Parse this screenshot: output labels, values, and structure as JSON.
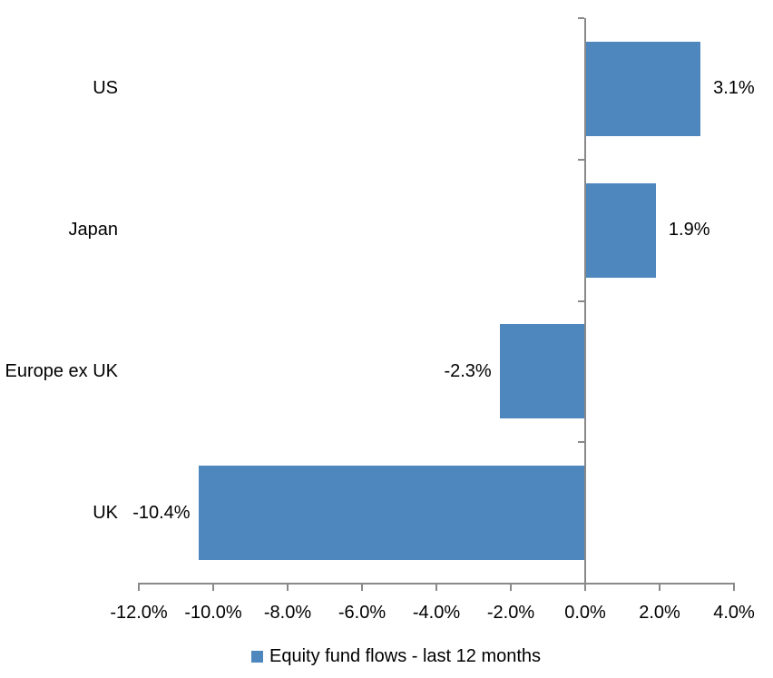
{
  "chart_data": {
    "type": "bar",
    "orientation": "horizontal",
    "title": "",
    "categories": [
      "US",
      "Japan",
      "Europe ex UK",
      "UK"
    ],
    "series": [
      {
        "name": "Equity fund flows - last 12 months",
        "values": [
          3.1,
          1.9,
          -2.3,
          -10.4
        ],
        "data_labels": [
          "3.1%",
          "1.9%",
          "-2.3%",
          "-10.4%"
        ]
      }
    ],
    "xlabel": "",
    "ylabel": "",
    "xlim": [
      -12,
      4
    ],
    "x_ticks": [
      {
        "value": -12,
        "label": "-12.0%"
      },
      {
        "value": -10,
        "label": "-10.0%"
      },
      {
        "value": -8,
        "label": "-8.0%"
      },
      {
        "value": -6,
        "label": "-6.0%"
      },
      {
        "value": -4,
        "label": "-4.0%"
      },
      {
        "value": -2,
        "label": "-2.0%"
      },
      {
        "value": 0,
        "label": "0.0%"
      },
      {
        "value": 2,
        "label": "2.0%"
      },
      {
        "value": 4,
        "label": "4.0%"
      }
    ],
    "grid": false,
    "legend": {
      "position": "bottom",
      "label": "Equity fund flows - last 12 months"
    },
    "colors": {
      "bar": "#4E87BE",
      "axis": "#898989",
      "text": "#000000",
      "background": "#FFFFFF"
    }
  }
}
